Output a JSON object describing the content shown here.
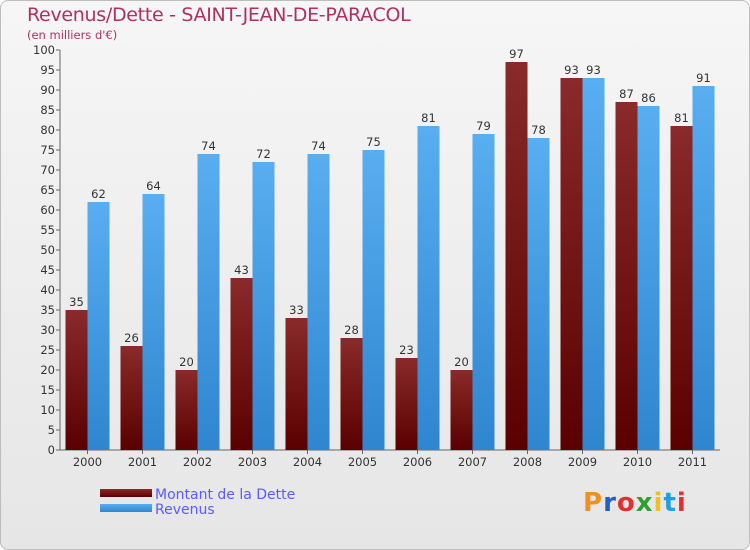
{
  "header": {
    "title": "Revenus/Dette - SAINT-JEAN-DE-PARACOL",
    "subtitle": "(en milliers d'€)"
  },
  "logo": {
    "text": "Proxiti",
    "colors": [
      "#f09020",
      "#2060c0",
      "#e03030",
      "#30a030",
      "#f0c020",
      "#20a0e0",
      "#e03030"
    ]
  },
  "colors": {
    "debt": "#7b1a1a",
    "debt_dark": "#5a0000",
    "revenue": "#4aa3e8",
    "revenue_dark": "#2f86cf"
  },
  "chart_data": {
    "type": "bar",
    "title": "Revenus/Dette - SAINT-JEAN-DE-PARACOL",
    "subtitle": "(en milliers d'€)",
    "categories": [
      "2000",
      "2001",
      "2002",
      "2003",
      "2004",
      "2005",
      "2006",
      "2007",
      "2008",
      "2009",
      "2010",
      "2011"
    ],
    "series": [
      {
        "name": "Montant de la Dette",
        "values": [
          35,
          26,
          20,
          43,
          33,
          28,
          23,
          20,
          97,
          93,
          87,
          81
        ]
      },
      {
        "name": "Revenus",
        "values": [
          62,
          64,
          74,
          72,
          74,
          75,
          81,
          79,
          78,
          93,
          86,
          91
        ]
      }
    ],
    "ylim": [
      0,
      100
    ],
    "yticks": [
      0,
      5,
      10,
      15,
      20,
      25,
      30,
      35,
      40,
      45,
      50,
      55,
      60,
      65,
      70,
      75,
      80,
      85,
      90,
      95,
      100
    ],
    "grid": false,
    "legend_position": "bottom-left",
    "xlabel": "",
    "ylabel": ""
  }
}
